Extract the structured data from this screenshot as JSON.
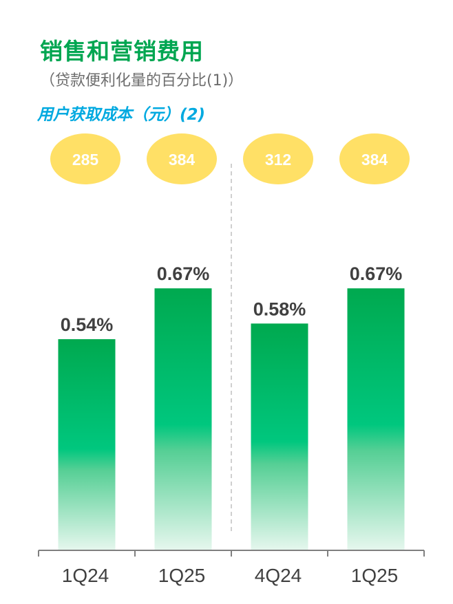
{
  "title": "销售和营销费用",
  "subtitle": "（贷款便利化量的百分比(1)）",
  "cac_label": "用户获取成本（元）(2)",
  "colors": {
    "title": "#00a651",
    "cac_label": "#00a9e0",
    "bubble": "#ffe066",
    "bar_top": "#00a94f",
    "bar_mid": "#00c77e",
    "value_text": "#404040",
    "axis": "#7f7f7f",
    "divider": "#bfbfbf"
  },
  "chart_data": {
    "type": "bar",
    "categories": [
      "1Q24",
      "1Q25",
      "4Q24",
      "1Q25"
    ],
    "values": [
      0.54,
      0.67,
      0.58,
      0.67
    ],
    "value_labels": [
      "0.54%",
      "0.67%",
      "0.58%",
      "0.67%"
    ],
    "cac_values": [
      "285",
      "384",
      "312",
      "384"
    ],
    "ylim": [
      0,
      0.95
    ],
    "grid": false,
    "title": "销售和营销费用",
    "xlabel": "",
    "ylabel": ""
  }
}
